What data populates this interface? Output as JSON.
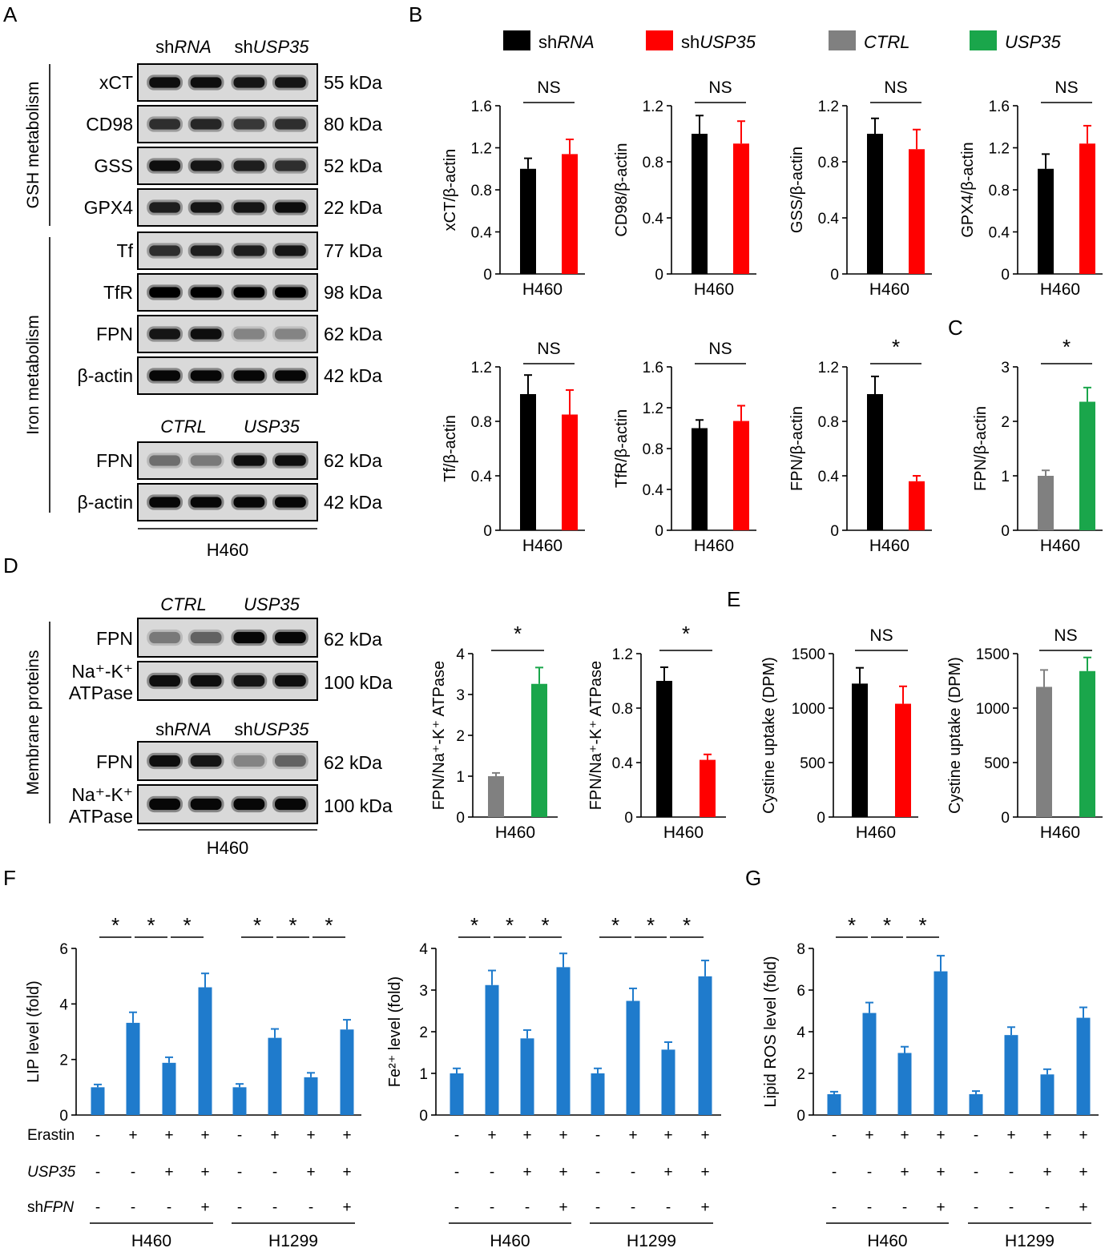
{
  "panel_labels": {
    "A": "A",
    "B": "B",
    "C": "C",
    "D": "D",
    "E": "E",
    "F": "F",
    "G": "G"
  },
  "legend": [
    {
      "prefix": "sh",
      "italic": "RNA",
      "color": "#000000"
    },
    {
      "prefix": "sh",
      "italic": "USP35",
      "color": "#ff0000"
    },
    {
      "prefix": "",
      "italic": "CTRL",
      "color": "#808080"
    },
    {
      "prefix": "",
      "italic": "USP35",
      "color": "#1aa64b"
    }
  ],
  "colors": {
    "black": "#000000",
    "red": "#ff0000",
    "gray": "#808080",
    "green": "#1aa64b",
    "blue": "#1f7bcc"
  },
  "blots": {
    "A": {
      "groups_top": [
        {
          "prefix": "sh",
          "italic": "RNA"
        },
        {
          "prefix": "sh",
          "italic": "USP35"
        }
      ],
      "groups_bottom": [
        {
          "prefix": "",
          "italic": "CTRL"
        },
        {
          "prefix": "",
          "italic": "USP35"
        }
      ],
      "side_gsh": "GSH metabolism",
      "side_iron": "Iron metabolism",
      "cell": "H460",
      "rows": [
        {
          "label": "xCT",
          "kda": "55 kDa",
          "bands": [
            0.9,
            0.9,
            0.85,
            0.85
          ]
        },
        {
          "label": "CD98",
          "kda": "80 kDa",
          "bands": [
            0.7,
            0.75,
            0.65,
            0.7
          ]
        },
        {
          "label": "GSS",
          "kda": "52 kDa",
          "bands": [
            0.9,
            0.85,
            0.8,
            0.7
          ]
        },
        {
          "label": "GPX4",
          "kda": "22 kDa",
          "bands": [
            0.8,
            0.85,
            0.85,
            0.9
          ]
        },
        {
          "label": "Tf",
          "kda": "77 kDa",
          "bands": [
            0.7,
            0.8,
            0.8,
            0.85
          ]
        },
        {
          "label": "TfR",
          "kda": "98 kDa",
          "bands": [
            1,
            1,
            1,
            1
          ]
        },
        {
          "label": "FPN",
          "kda": "62 kDa",
          "bands": [
            0.85,
            0.9,
            0.3,
            0.3
          ]
        },
        {
          "label": "β-actin",
          "kda": "42 kDa",
          "bands": [
            0.95,
            0.95,
            0.95,
            0.95
          ]
        },
        {
          "label": "FPN",
          "kda": "62 kDa",
          "bands": [
            0.4,
            0.35,
            0.9,
            0.9
          ]
        },
        {
          "label": "β-actin",
          "kda": "42 kDa",
          "bands": [
            0.95,
            0.95,
            0.95,
            0.95
          ]
        }
      ]
    },
    "D": {
      "groups_top": [
        {
          "prefix": "",
          "italic": "CTRL"
        },
        {
          "prefix": "",
          "italic": "USP35"
        }
      ],
      "groups_bottom": [
        {
          "prefix": "sh",
          "italic": "RNA"
        },
        {
          "prefix": "sh",
          "italic": "USP35"
        }
      ],
      "side": "Membrane proteins",
      "cell": "H460",
      "rows": [
        {
          "label": "FPN",
          "kda": "62 kDa",
          "bands": [
            0.35,
            0.45,
            0.95,
            0.95
          ]
        },
        {
          "label": "Na⁺-K⁺\nATPase",
          "kda": "100 kDa",
          "bands": [
            0.9,
            0.9,
            0.85,
            0.9
          ]
        },
        {
          "label": "FPN",
          "kda": "62 kDa",
          "bands": [
            0.9,
            0.85,
            0.3,
            0.45
          ]
        },
        {
          "label": "Na⁺-K⁺\nATPase",
          "kda": "100 kDa",
          "bands": [
            0.95,
            0.95,
            0.95,
            0.95
          ]
        }
      ]
    }
  },
  "chart_data": [
    {
      "id": "B1",
      "type": "bar",
      "ylabel": "xCT/β-actin",
      "xlabel": "H460",
      "ylim": [
        0,
        1.6
      ],
      "ticks": [
        "0",
        "0.4",
        "0.8",
        "1.2",
        "1.6"
      ],
      "values": [
        1.0,
        1.14
      ],
      "errors": [
        0.1,
        0.14
      ],
      "colors": [
        "#000000",
        "#ff0000"
      ],
      "sig": "NS"
    },
    {
      "id": "B2",
      "type": "bar",
      "ylabel": "CD98/β-actin",
      "xlabel": "H460",
      "ylim": [
        0,
        1.2
      ],
      "ticks": [
        "0",
        "0.4",
        "0.8",
        "1.2"
      ],
      "values": [
        1.0,
        0.93
      ],
      "errors": [
        0.13,
        0.16
      ],
      "colors": [
        "#000000",
        "#ff0000"
      ],
      "sig": "NS"
    },
    {
      "id": "B3",
      "type": "bar",
      "ylabel": "GSS/β-actin",
      "xlabel": "H460",
      "ylim": [
        0,
        1.2
      ],
      "ticks": [
        "0",
        "0.4",
        "0.8",
        "1.2"
      ],
      "values": [
        1.0,
        0.89
      ],
      "errors": [
        0.11,
        0.14
      ],
      "colors": [
        "#000000",
        "#ff0000"
      ],
      "sig": "NS"
    },
    {
      "id": "B4",
      "type": "bar",
      "ylabel": "GPX4/β-actin",
      "xlabel": "H460",
      "ylim": [
        0,
        1.6
      ],
      "ticks": [
        "0",
        "0.4",
        "0.8",
        "1.2",
        "1.6"
      ],
      "values": [
        1.0,
        1.24
      ],
      "errors": [
        0.14,
        0.17
      ],
      "colors": [
        "#000000",
        "#ff0000"
      ],
      "sig": "NS"
    },
    {
      "id": "B5",
      "type": "bar",
      "ylabel": "Tf/β-actin",
      "xlabel": "H460",
      "ylim": [
        0,
        1.2
      ],
      "ticks": [
        "0",
        "0.4",
        "0.8",
        "1.2"
      ],
      "values": [
        1.0,
        0.85
      ],
      "errors": [
        0.14,
        0.18
      ],
      "colors": [
        "#000000",
        "#ff0000"
      ],
      "sig": "NS"
    },
    {
      "id": "B6",
      "type": "bar",
      "ylabel": "TfR/β-actin",
      "xlabel": "H460",
      "ylim": [
        0,
        1.6
      ],
      "ticks": [
        "0",
        "0.4",
        "0.8",
        "1.2",
        "1.6"
      ],
      "values": [
        1.0,
        1.07
      ],
      "errors": [
        0.08,
        0.15
      ],
      "colors": [
        "#000000",
        "#ff0000"
      ],
      "sig": "NS"
    },
    {
      "id": "B7",
      "type": "bar",
      "ylabel": "FPN/β-actin",
      "xlabel": "H460",
      "ylim": [
        0,
        1.2
      ],
      "ticks": [
        "0",
        "0.4",
        "0.8",
        "1.2"
      ],
      "values": [
        1.0,
        0.36
      ],
      "errors": [
        0.13,
        0.04
      ],
      "colors": [
        "#000000",
        "#ff0000"
      ],
      "sig": "*"
    },
    {
      "id": "C",
      "type": "bar",
      "ylabel": "FPN/β-actin",
      "xlabel": "H460",
      "ylim": [
        0,
        3
      ],
      "ticks": [
        "0",
        "1",
        "2",
        "3"
      ],
      "values": [
        1.0,
        2.36
      ],
      "errors": [
        0.1,
        0.26
      ],
      "colors": [
        "#808080",
        "#1aa64b"
      ],
      "sig": "*"
    },
    {
      "id": "D1",
      "type": "bar",
      "ylabel": "FPN/Na⁺-K⁺ ATPase",
      "xlabel": "H460",
      "ylim": [
        0,
        4
      ],
      "ticks": [
        "0",
        "1",
        "2",
        "3",
        "4"
      ],
      "values": [
        1.0,
        3.26
      ],
      "errors": [
        0.08,
        0.4
      ],
      "colors": [
        "#808080",
        "#1aa64b"
      ],
      "sig": "*"
    },
    {
      "id": "D2",
      "type": "bar",
      "ylabel": "FPN/Na⁺-K⁺ ATPase",
      "xlabel": "H460",
      "ylim": [
        0,
        1.2
      ],
      "ticks": [
        "0",
        "0.4",
        "0.8",
        "1.2"
      ],
      "values": [
        1.0,
        0.42
      ],
      "errors": [
        0.1,
        0.04
      ],
      "colors": [
        "#000000",
        "#ff0000"
      ],
      "sig": "*"
    },
    {
      "id": "E1",
      "type": "bar",
      "ylabel": "Cystine uptake (DPM)",
      "xlabel": "H460",
      "ylim": [
        0,
        1500
      ],
      "ticks": [
        "0",
        "500",
        "1000",
        "1500"
      ],
      "values": [
        1225,
        1040
      ],
      "errors": [
        145,
        160
      ],
      "colors": [
        "#000000",
        "#ff0000"
      ],
      "sig": "NS"
    },
    {
      "id": "E2",
      "type": "bar",
      "ylabel": "Cystine uptake (DPM)",
      "xlabel": "H460",
      "ylim": [
        0,
        1500
      ],
      "ticks": [
        "0",
        "500",
        "1000",
        "1500"
      ],
      "values": [
        1195,
        1340
      ],
      "errors": [
        155,
        125
      ],
      "colors": [
        "#808080",
        "#1aa64b"
      ],
      "sig": "NS"
    },
    {
      "id": "F1",
      "type": "bar",
      "ylabel": "LIP level (fold)",
      "ylim": [
        0,
        6
      ],
      "ticks": [
        "0",
        "2",
        "4",
        "6"
      ],
      "values": [
        1.0,
        3.32,
        1.88,
        4.6,
        1.0,
        2.78,
        1.36,
        3.08
      ],
      "errors": [
        0.1,
        0.38,
        0.2,
        0.5,
        0.12,
        0.32,
        0.16,
        0.35
      ],
      "sig": [
        "*",
        "*",
        "*",
        "*",
        "*",
        "*"
      ]
    },
    {
      "id": "F2",
      "type": "bar",
      "ylabel": "Fe²⁺ level (fold)",
      "ylim": [
        0,
        4
      ],
      "ticks": [
        "0",
        "1",
        "2",
        "3",
        "4"
      ],
      "values": [
        1.0,
        3.12,
        1.84,
        3.55,
        1.0,
        2.74,
        1.57,
        3.33
      ],
      "errors": [
        0.12,
        0.35,
        0.2,
        0.33,
        0.12,
        0.3,
        0.18,
        0.38
      ],
      "sig": [
        "*",
        "*",
        "*",
        "*",
        "*",
        "*"
      ]
    },
    {
      "id": "G",
      "type": "bar",
      "ylabel": "Lipid ROS level (fold)",
      "ylim": [
        0,
        8
      ],
      "ticks": [
        "0",
        "2",
        "4",
        "6",
        "8"
      ],
      "values": [
        1.0,
        4.9,
        2.98,
        6.9,
        1.0,
        3.84,
        1.95,
        4.67
      ],
      "errors": [
        0.12,
        0.5,
        0.3,
        0.75,
        0.15,
        0.38,
        0.25,
        0.5
      ],
      "sig": [
        "*",
        "*",
        "*"
      ]
    }
  ],
  "conditions": {
    "rows": [
      {
        "name": "Erastin",
        "prefix": "",
        "italic": "",
        "signs": [
          "-",
          "+",
          "+",
          "+",
          "-",
          "+",
          "+",
          "+"
        ]
      },
      {
        "name": "",
        "prefix": "",
        "italic": "USP35",
        "signs": [
          "-",
          "-",
          "+",
          "+",
          "-",
          "-",
          "+",
          "+"
        ]
      },
      {
        "name": "",
        "prefix": "sh",
        "italic": "FPN",
        "signs": [
          "-",
          "-",
          "-",
          "+",
          "-",
          "-",
          "-",
          "+"
        ]
      }
    ],
    "groups": [
      "H460",
      "H1299"
    ]
  }
}
